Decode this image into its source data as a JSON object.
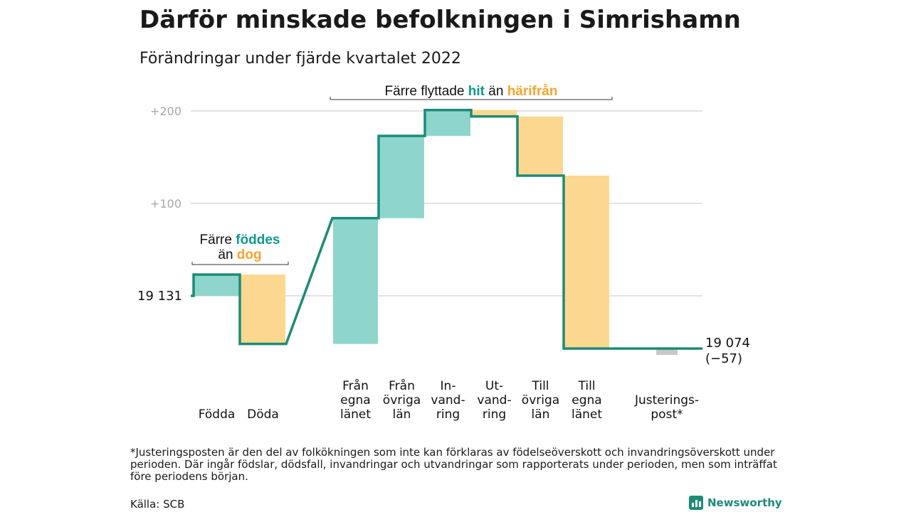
{
  "title": "Därför minskade befolkningen i Simrishamn",
  "subtitle": "Förändringar under fjärde kvartalet 2022",
  "colors": {
    "increase": "#8ed6cb",
    "decrease": "#fbd78f",
    "adjustment": "#c8c8c8",
    "line": "#1c8b78"
  },
  "chart_data": {
    "type": "waterfall",
    "baseline": 19131,
    "ylim": [
      19111,
      19206
    ],
    "yticks": [
      {
        "value": 19131,
        "label": ""
      },
      {
        "value": 19231,
        "label": "+100"
      },
      {
        "value": 19331,
        "label": "+200"
      }
    ],
    "start_label": "19 131",
    "end_label": "19 074",
    "change_label": "(−57)",
    "steps": [
      {
        "category": "Födda",
        "label_lines": [
          "Födda"
        ],
        "value": 23,
        "kind": "increase"
      },
      {
        "category": "Döda",
        "label_lines": [
          "Döda"
        ],
        "value": -75,
        "kind": "decrease"
      },
      {
        "category": "Från egna länet",
        "label_lines": [
          "Från",
          "egna",
          "länet"
        ],
        "value": 136,
        "kind": "increase"
      },
      {
        "category": "Från övriga län",
        "label_lines": [
          "Från",
          "övriga",
          "län"
        ],
        "value": 89,
        "kind": "increase"
      },
      {
        "category": "In-vandring",
        "label_lines": [
          "In-",
          "vand-",
          "ring"
        ],
        "value": 28,
        "kind": "increase"
      },
      {
        "category": "Ut-vandring",
        "label_lines": [
          "Ut-",
          "vand-",
          "ring"
        ],
        "value": -7,
        "kind": "decrease"
      },
      {
        "category": "Till övriga län",
        "label_lines": [
          "Till",
          "övriga",
          "län"
        ],
        "value": -64,
        "kind": "decrease"
      },
      {
        "category": "Till egna länet",
        "label_lines": [
          "Till",
          "egna",
          "länet"
        ],
        "value": -187,
        "kind": "decrease"
      },
      {
        "category": "Justeringspost*",
        "label_lines": [
          "Justerings-",
          "post*"
        ],
        "value": 0,
        "kind": "adjustment"
      }
    ],
    "annotations": [
      {
        "text_parts": [
          "Färre ",
          "föddes"
        ],
        "line2_parts": [
          "än ",
          "dog"
        ],
        "spans": [
          "Födda",
          "Döda"
        ]
      },
      {
        "text_parts": [
          "Färre flyttade ",
          "hit",
          " än ",
          "härifrån"
        ],
        "spans": [
          "Från egna länet",
          "Till egna länet"
        ]
      }
    ]
  },
  "footnote": "*Justeringsposten är den del av folkökningen som inte kan förklaras av födelseöverskott och invandringsöverskott under perioden. Där ingår födslar, dödsfall, invandringar och utvandringar som rapporterats under perioden, men som inträffat före periodens början.",
  "source": "Källa: SCB",
  "brand": "Newsworthy"
}
